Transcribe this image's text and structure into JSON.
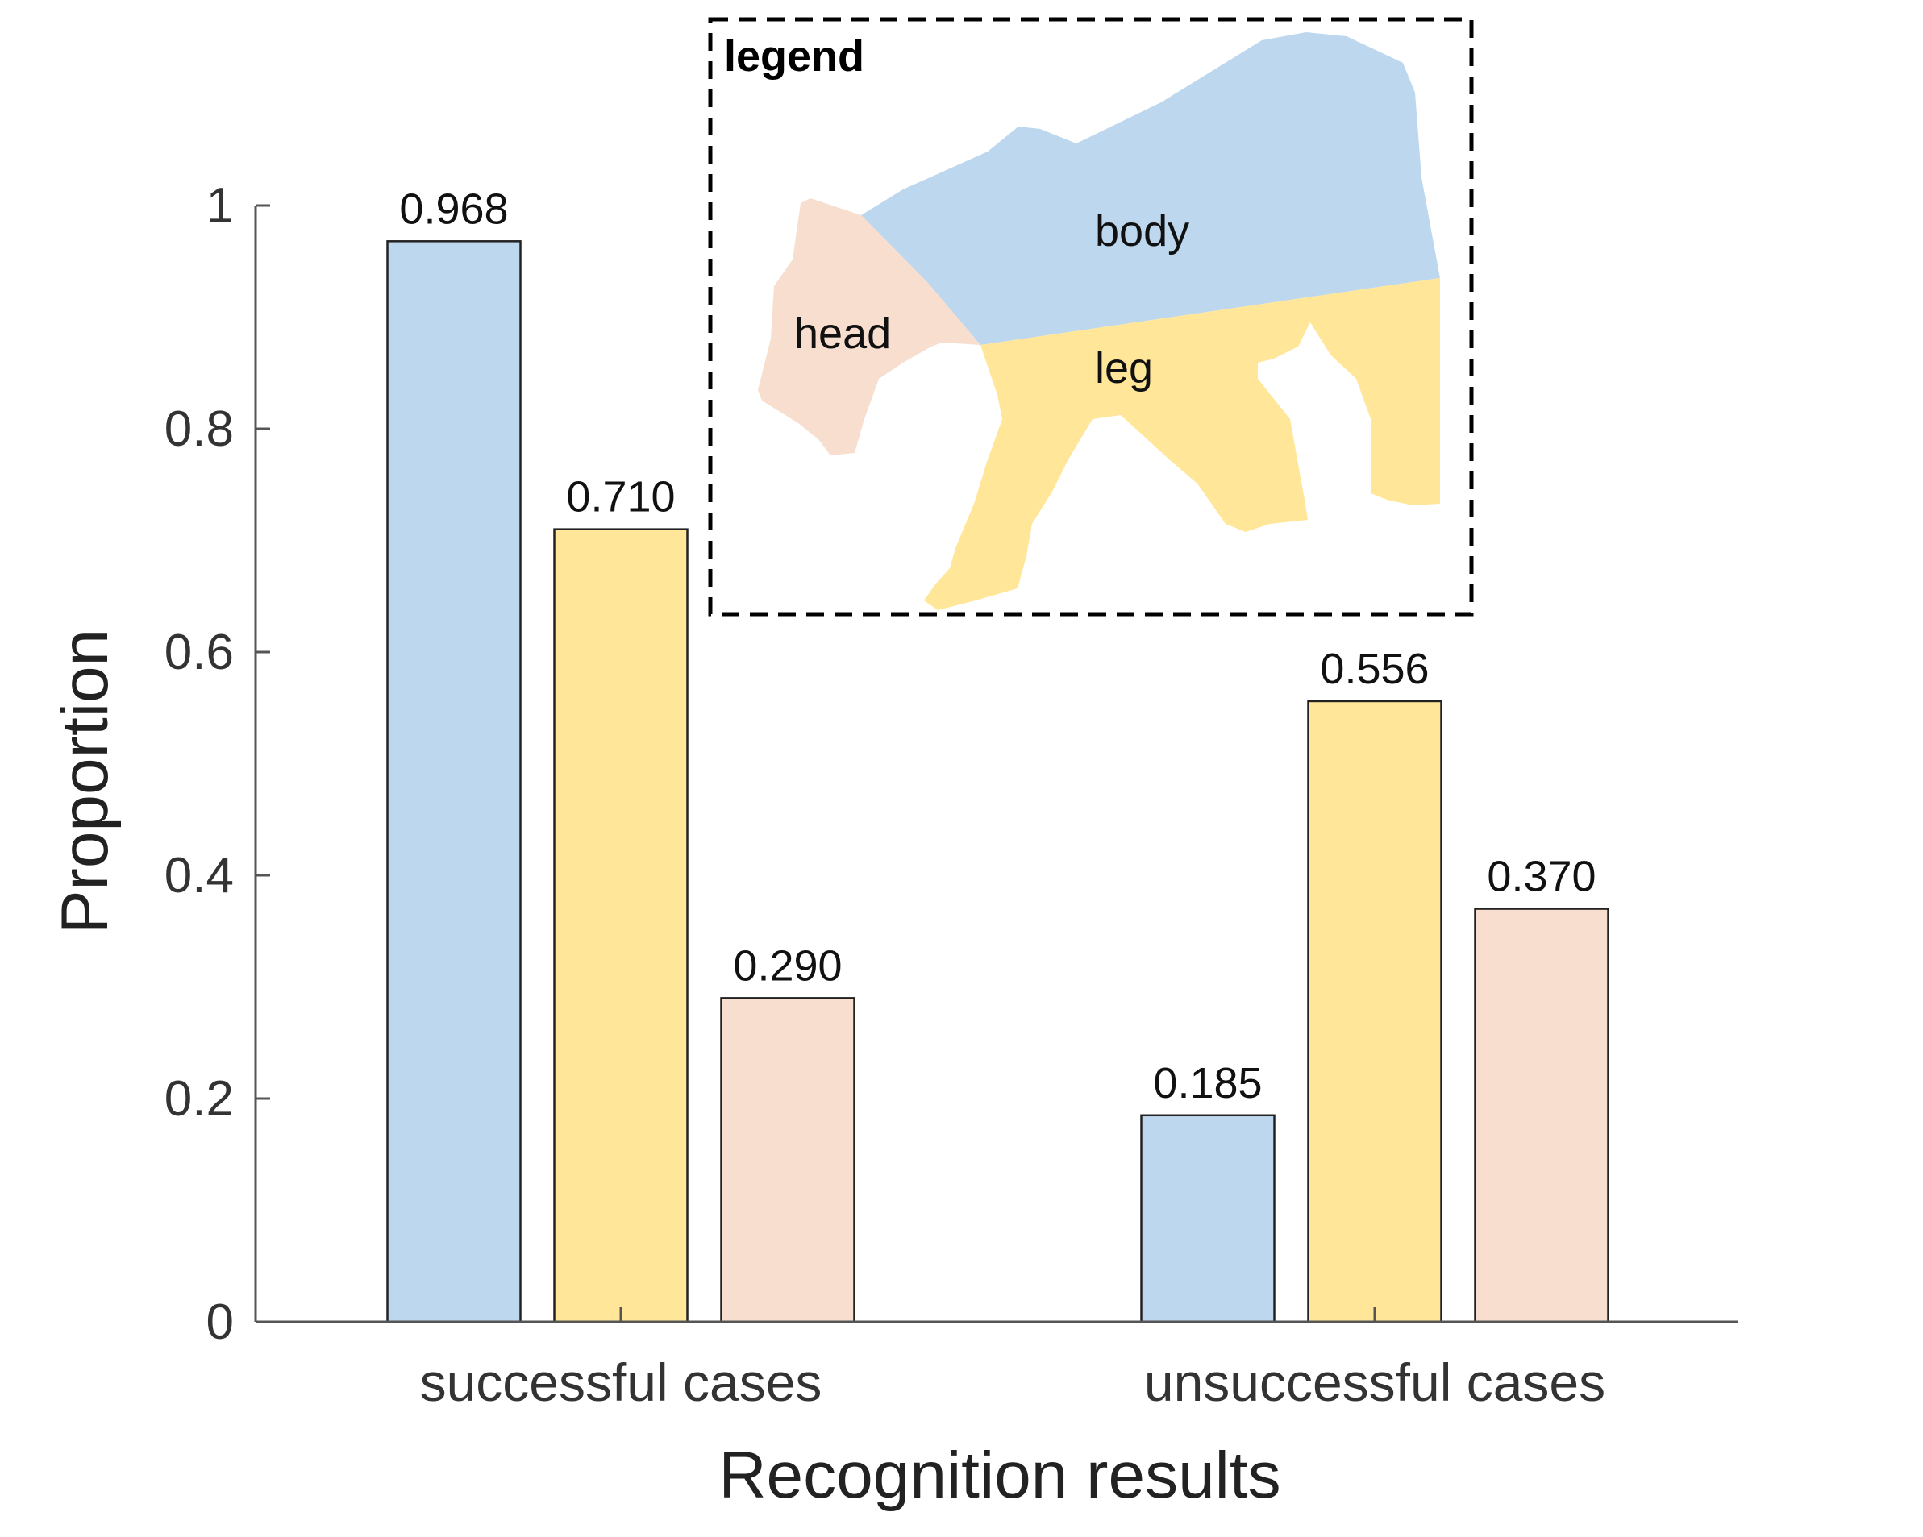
{
  "chart_data": {
    "type": "bar",
    "title": "",
    "xlabel": "Recognition results",
    "ylabel": "Proportion",
    "ylim": [
      0,
      1
    ],
    "yticks": [
      0,
      0.2,
      0.4,
      0.6,
      0.8,
      1
    ],
    "ytick_labels": [
      "0",
      "0.2",
      "0.4",
      "0.6",
      "0.8",
      "1"
    ],
    "categories": [
      "successful cases",
      "unsuccessful cases"
    ],
    "series": [
      {
        "name": "body",
        "color": "#BDD7EE",
        "values": [
          0.968,
          0.185
        ],
        "labels": [
          "0.968",
          "0.185"
        ]
      },
      {
        "name": "leg",
        "color": "#FFE699",
        "values": [
          0.71,
          0.556
        ],
        "labels": [
          "0.710",
          "0.556"
        ]
      },
      {
        "name": "head",
        "color": "#F8DECF",
        "values": [
          0.29,
          0.37
        ],
        "labels": [
          "0.290",
          "0.370"
        ]
      }
    ],
    "legend": {
      "title": "legend",
      "placement": "top-center",
      "labels": {
        "body": "body",
        "leg": "leg",
        "head": "head"
      }
    }
  }
}
